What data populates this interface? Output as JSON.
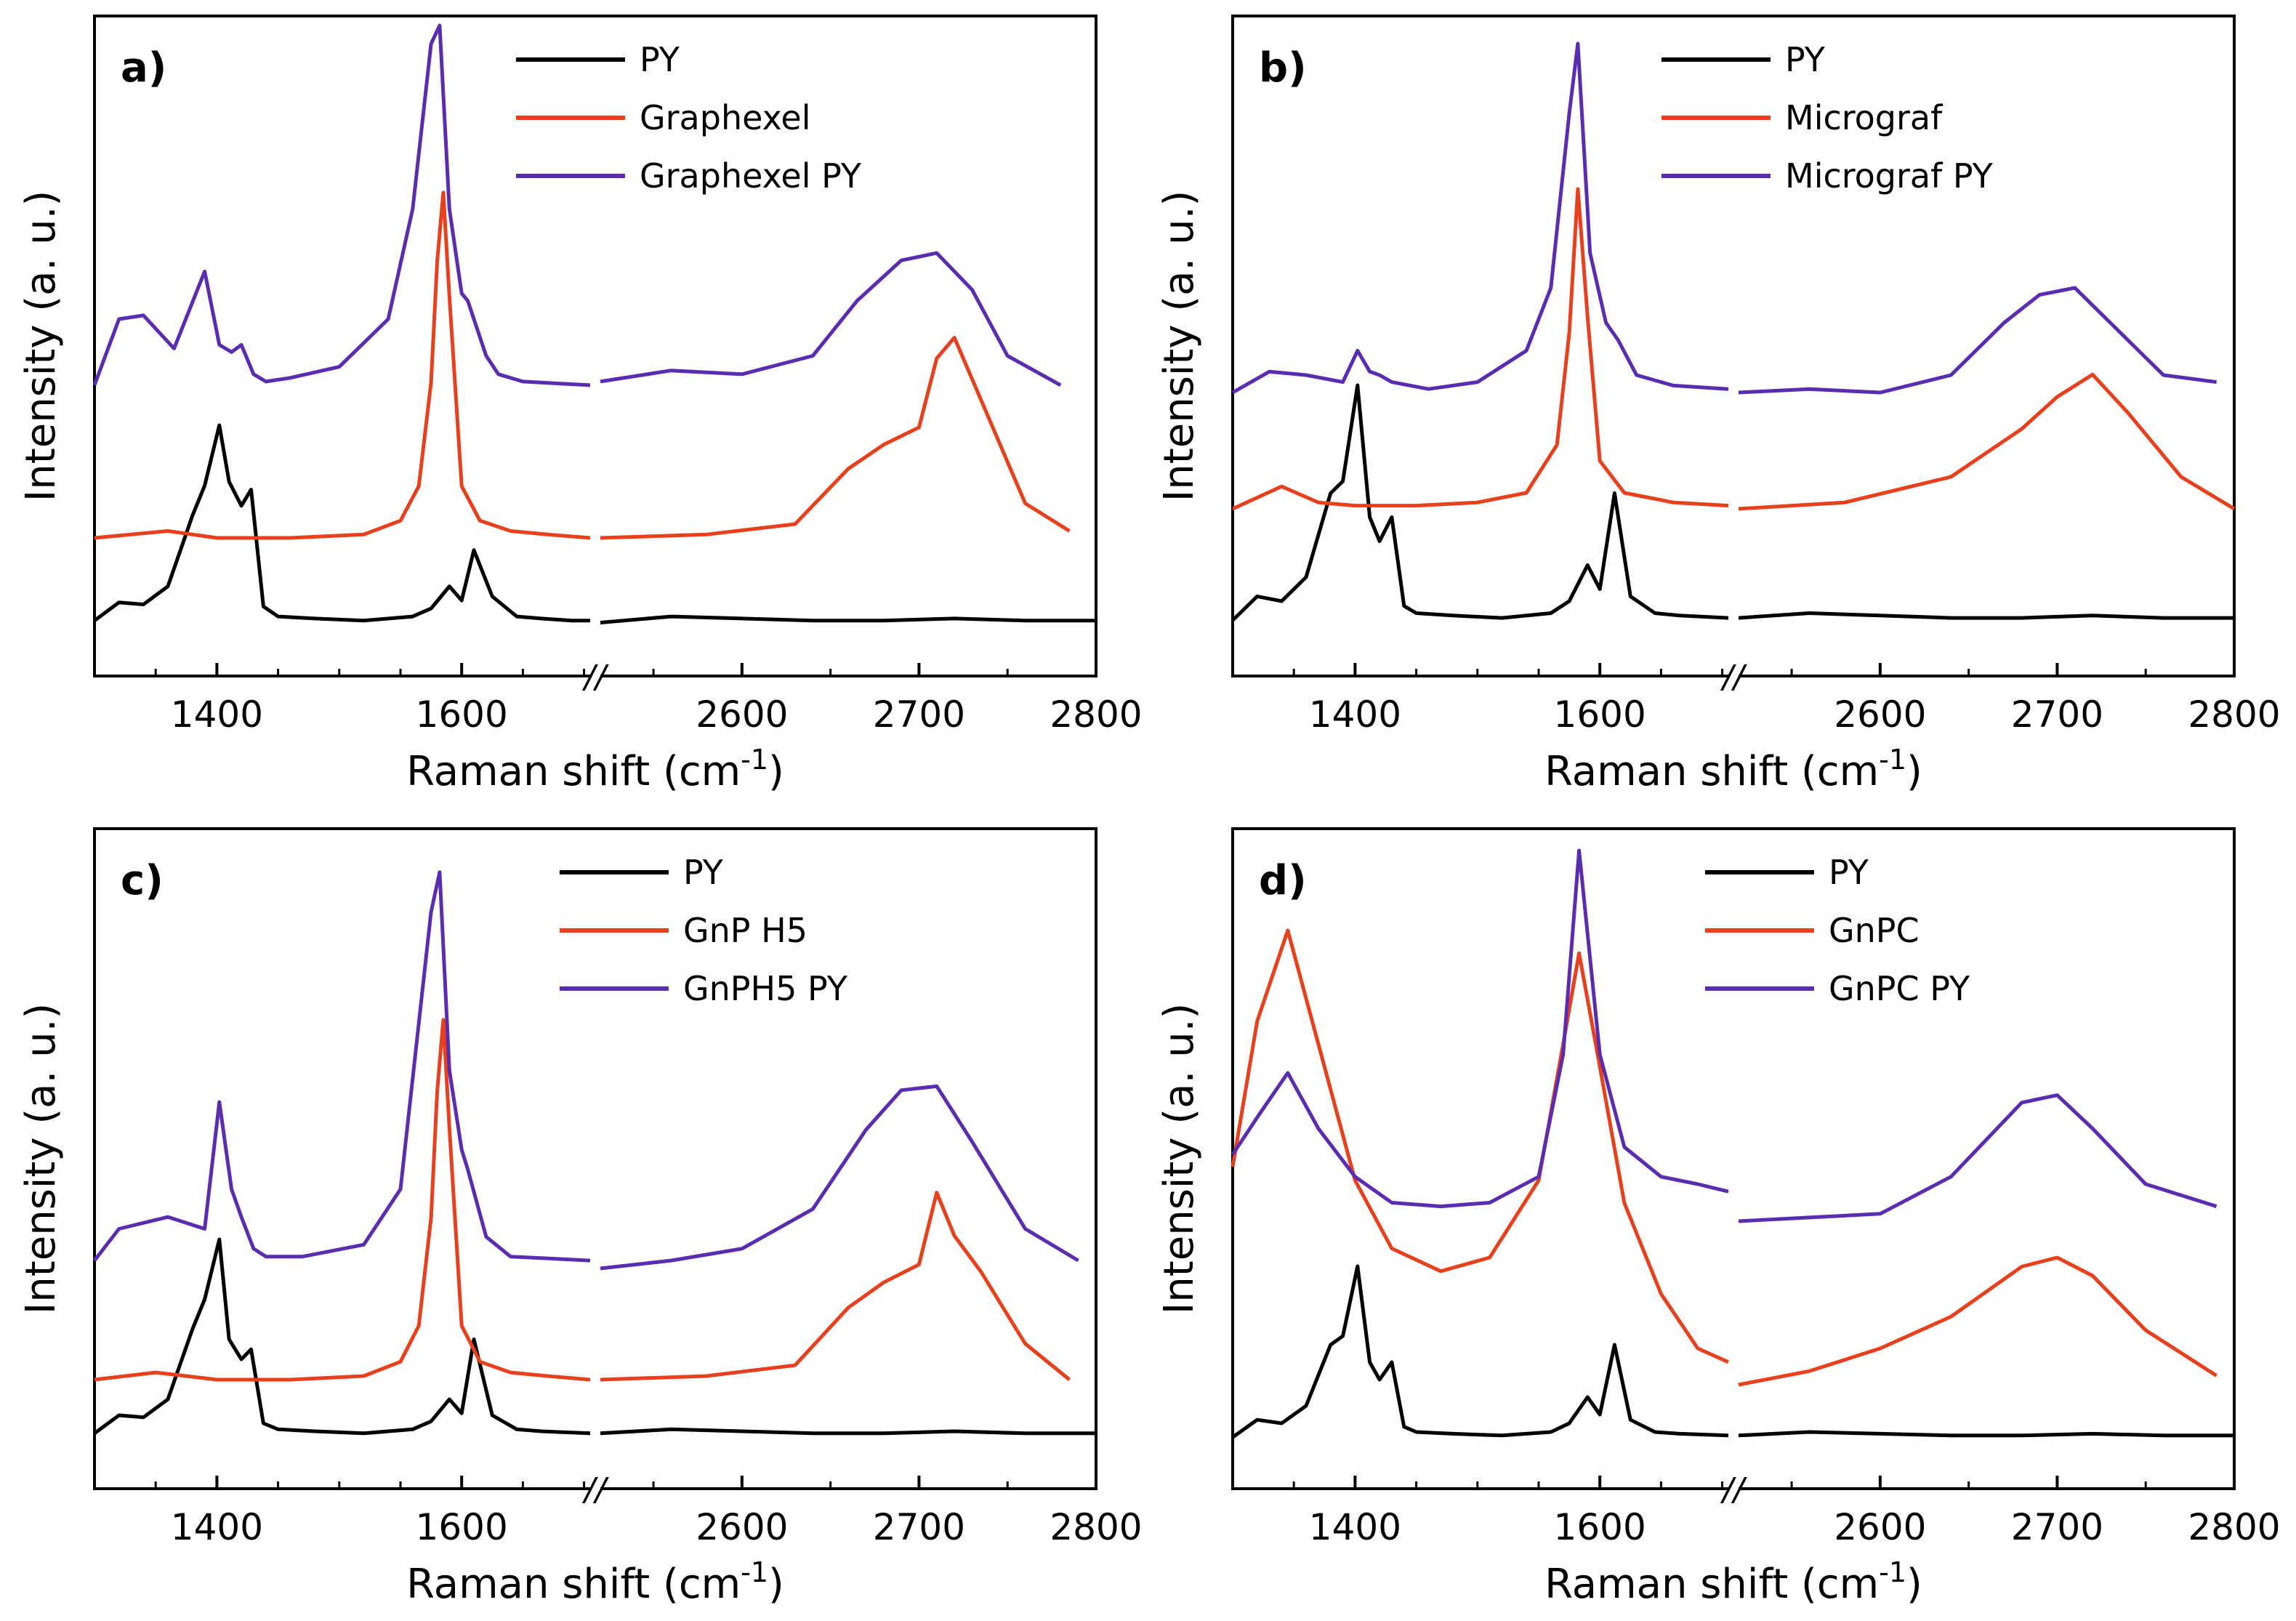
{
  "figure": {
    "x_break_symbol": "//",
    "colors": {
      "py": "#000000",
      "filler": "#e8401c",
      "combined": "#5a2db0"
    }
  },
  "chart_data": [
    {
      "type": "line",
      "panel_label": "a)",
      "xlabel": "Raman shift (cm",
      "xlabel_sup": "-1",
      "ylabel": "Intensity (a. u.)",
      "x_tick_labels": [
        "1400",
        "1600",
        "2600",
        "2700",
        "2800"
      ],
      "x_segments": [
        {
          "range": [
            1300,
            1705
          ]
        },
        {
          "range": [
            2520,
            2800
          ]
        }
      ],
      "legend_position": "top-center",
      "series": [
        {
          "name": "PY",
          "color": "#000000",
          "x": [
            1300,
            1320,
            1340,
            1360,
            1380,
            1390,
            1402,
            1410,
            1420,
            1428,
            1438,
            1450,
            1480,
            1520,
            1560,
            1575,
            1590,
            1600,
            1610,
            1625,
            1645,
            1665,
            1690,
            1705,
            2520,
            2560,
            2600,
            2640,
            2680,
            2720,
            2760,
            2800
          ],
          "values": [
            0.03,
            0.12,
            0.11,
            0.2,
            0.55,
            0.7,
            1.0,
            0.72,
            0.6,
            0.68,
            0.1,
            0.05,
            0.04,
            0.03,
            0.05,
            0.09,
            0.2,
            0.13,
            0.38,
            0.15,
            0.05,
            0.04,
            0.03,
            0.03,
            0.02,
            0.05,
            0.04,
            0.03,
            0.03,
            0.04,
            0.03,
            0.03
          ]
        },
        {
          "name": "Graphexel",
          "color": "#e8401c",
          "x": [
            1300,
            1360,
            1400,
            1460,
            1520,
            1550,
            1565,
            1575,
            1580,
            1585,
            1590,
            1600,
            1615,
            1640,
            1670,
            1705,
            2520,
            2580,
            2630,
            2660,
            2680,
            2700,
            2710,
            2720,
            2735,
            2760,
            2785
          ],
          "values": [
            0.0,
            0.02,
            0.0,
            0.0,
            0.01,
            0.05,
            0.15,
            0.45,
            0.8,
            1.0,
            0.7,
            0.15,
            0.05,
            0.02,
            0.01,
            0.0,
            0.0,
            0.01,
            0.04,
            0.2,
            0.27,
            0.32,
            0.52,
            0.58,
            0.4,
            0.1,
            0.02
          ]
        },
        {
          "name": "Graphexel PY",
          "color": "#5a2db0",
          "x": [
            1300,
            1320,
            1340,
            1365,
            1390,
            1402,
            1412,
            1420,
            1430,
            1440,
            1460,
            1500,
            1540,
            1560,
            1575,
            1582,
            1590,
            1600,
            1605,
            1620,
            1630,
            1650,
            1705,
            2520,
            2560,
            2600,
            2640,
            2665,
            2690,
            2710,
            2730,
            2750,
            2780
          ],
          "values": [
            0.02,
            0.2,
            0.21,
            0.12,
            0.33,
            0.13,
            0.11,
            0.13,
            0.05,
            0.03,
            0.04,
            0.07,
            0.2,
            0.5,
            0.95,
            1.0,
            0.5,
            0.27,
            0.25,
            0.1,
            0.05,
            0.03,
            0.02,
            0.03,
            0.06,
            0.05,
            0.1,
            0.25,
            0.36,
            0.38,
            0.28,
            0.1,
            0.02
          ]
        }
      ]
    },
    {
      "type": "line",
      "panel_label": "b)",
      "xlabel": "Raman shift (cm",
      "xlabel_sup": "-1",
      "ylabel": "Intensity (a. u.)",
      "x_tick_labels": [
        "1400",
        "1600",
        "2600",
        "2700",
        "2800"
      ],
      "x_segments": [
        {
          "range": [
            1300,
            1705
          ]
        },
        {
          "range": [
            2520,
            2800
          ]
        }
      ],
      "legend_position": "top-center",
      "series": [
        {
          "name": "PY",
          "color": "#000000",
          "x": [
            1300,
            1320,
            1340,
            1360,
            1380,
            1390,
            1402,
            1412,
            1420,
            1430,
            1440,
            1450,
            1480,
            1520,
            1560,
            1575,
            1590,
            1600,
            1612,
            1625,
            1645,
            1665,
            1705,
            2520,
            2560,
            2600,
            2640,
            2680,
            2720,
            2760,
            2800
          ],
          "values": [
            0.02,
            0.12,
            0.1,
            0.2,
            0.55,
            0.6,
            1.0,
            0.45,
            0.35,
            0.45,
            0.08,
            0.05,
            0.04,
            0.03,
            0.05,
            0.1,
            0.25,
            0.15,
            0.55,
            0.12,
            0.05,
            0.04,
            0.03,
            0.03,
            0.05,
            0.04,
            0.03,
            0.03,
            0.04,
            0.03,
            0.03
          ]
        },
        {
          "name": "Micrograf",
          "color": "#e8401c",
          "x": [
            1300,
            1340,
            1370,
            1400,
            1450,
            1500,
            1540,
            1565,
            1575,
            1582,
            1590,
            1600,
            1620,
            1660,
            1705,
            2520,
            2580,
            2640,
            2680,
            2700,
            2720,
            2740,
            2770,
            2800
          ],
          "values": [
            0.0,
            0.07,
            0.02,
            0.01,
            0.01,
            0.02,
            0.05,
            0.2,
            0.55,
            1.0,
            0.6,
            0.15,
            0.05,
            0.02,
            0.01,
            0.0,
            0.02,
            0.1,
            0.25,
            0.35,
            0.42,
            0.3,
            0.1,
            0.0
          ]
        },
        {
          "name": "Micrograf PY",
          "color": "#5a2db0",
          "x": [
            1300,
            1330,
            1360,
            1390,
            1402,
            1412,
            1420,
            1430,
            1460,
            1500,
            1540,
            1560,
            1575,
            1582,
            1592,
            1605,
            1615,
            1630,
            1660,
            1705,
            2520,
            2560,
            2600,
            2640,
            2670,
            2690,
            2710,
            2730,
            2760,
            2790
          ],
          "values": [
            0.0,
            0.06,
            0.05,
            0.03,
            0.12,
            0.06,
            0.05,
            0.03,
            0.01,
            0.03,
            0.12,
            0.3,
            0.8,
            1.0,
            0.4,
            0.2,
            0.15,
            0.05,
            0.02,
            0.01,
            0.0,
            0.01,
            0.0,
            0.05,
            0.2,
            0.28,
            0.3,
            0.2,
            0.05,
            0.03
          ]
        }
      ]
    },
    {
      "type": "line",
      "panel_label": "c)",
      "xlabel": "Raman shift (cm",
      "xlabel_sup": "-1",
      "ylabel": "Intensity (a. u.)",
      "x_tick_labels": [
        "1400",
        "1600",
        "2600",
        "2700",
        "2800"
      ],
      "x_segments": [
        {
          "range": [
            1300,
            1705
          ]
        },
        {
          "range": [
            2520,
            2800
          ]
        }
      ],
      "legend_position": "top-center",
      "series": [
        {
          "name": "PY",
          "color": "#000000",
          "x": [
            1300,
            1320,
            1340,
            1360,
            1380,
            1390,
            1402,
            1410,
            1420,
            1428,
            1438,
            1450,
            1480,
            1520,
            1560,
            1575,
            1590,
            1600,
            1610,
            1625,
            1645,
            1665,
            1705,
            2520,
            2560,
            2600,
            2640,
            2680,
            2720,
            2760,
            2800
          ],
          "values": [
            0.03,
            0.12,
            0.11,
            0.2,
            0.55,
            0.7,
            1.0,
            0.5,
            0.4,
            0.45,
            0.08,
            0.05,
            0.04,
            0.03,
            0.05,
            0.09,
            0.2,
            0.13,
            0.5,
            0.12,
            0.05,
            0.04,
            0.03,
            0.03,
            0.05,
            0.04,
            0.03,
            0.03,
            0.04,
            0.03,
            0.03
          ]
        },
        {
          "name": "GnP H5",
          "color": "#e8401c",
          "x": [
            1300,
            1350,
            1400,
            1460,
            1520,
            1550,
            1565,
            1575,
            1580,
            1585,
            1590,
            1600,
            1615,
            1640,
            1670,
            1705,
            2520,
            2580,
            2630,
            2660,
            2680,
            2700,
            2710,
            2720,
            2735,
            2760,
            2785
          ],
          "values": [
            0.0,
            0.02,
            0.0,
            0.0,
            0.01,
            0.05,
            0.15,
            0.45,
            0.8,
            1.0,
            0.7,
            0.15,
            0.05,
            0.02,
            0.01,
            0.0,
            0.0,
            0.01,
            0.04,
            0.2,
            0.27,
            0.32,
            0.52,
            0.4,
            0.3,
            0.1,
            0.0
          ]
        },
        {
          "name": "GnPH5 PY",
          "color": "#5a2db0",
          "x": [
            1300,
            1320,
            1360,
            1390,
            1402,
            1412,
            1420,
            1430,
            1440,
            1470,
            1520,
            1550,
            1575,
            1582,
            1590,
            1600,
            1605,
            1620,
            1640,
            1705,
            2520,
            2560,
            2600,
            2640,
            2670,
            2690,
            2710,
            2730,
            2760,
            2790
          ],
          "values": [
            0.02,
            0.1,
            0.13,
            0.1,
            0.42,
            0.2,
            0.13,
            0.05,
            0.03,
            0.03,
            0.06,
            0.2,
            0.9,
            1.0,
            0.5,
            0.3,
            0.25,
            0.08,
            0.03,
            0.02,
            0.0,
            0.02,
            0.05,
            0.15,
            0.35,
            0.45,
            0.46,
            0.32,
            0.1,
            0.02
          ]
        }
      ]
    },
    {
      "type": "line",
      "panel_label": "d)",
      "xlabel": "Raman shift (cm",
      "xlabel_sup": "-1",
      "ylabel": "Intensity (a. u.)",
      "x_tick_labels": [
        "1400",
        "1600",
        "2600",
        "2700",
        "2800"
      ],
      "x_segments": [
        {
          "range": [
            1300,
            1705
          ]
        },
        {
          "range": [
            2520,
            2800
          ]
        }
      ],
      "legend_position": "top-center",
      "series": [
        {
          "name": "PY",
          "color": "#000000",
          "x": [
            1300,
            1320,
            1340,
            1360,
            1380,
            1390,
            1402,
            1412,
            1420,
            1430,
            1440,
            1450,
            1480,
            1520,
            1560,
            1575,
            1590,
            1600,
            1612,
            1625,
            1645,
            1665,
            1705,
            2520,
            2560,
            2600,
            2640,
            2680,
            2720,
            2760,
            2800
          ],
          "values": [
            0.02,
            0.12,
            0.1,
            0.2,
            0.55,
            0.6,
            1.0,
            0.45,
            0.35,
            0.45,
            0.08,
            0.05,
            0.04,
            0.03,
            0.05,
            0.1,
            0.25,
            0.15,
            0.55,
            0.12,
            0.05,
            0.04,
            0.03,
            0.03,
            0.05,
            0.04,
            0.03,
            0.03,
            0.04,
            0.03,
            0.03
          ]
        },
        {
          "name": "GnPC",
          "color": "#e8401c",
          "x": [
            1300,
            1320,
            1345,
            1370,
            1400,
            1430,
            1470,
            1510,
            1550,
            1570,
            1583,
            1600,
            1620,
            1650,
            1680,
            1705,
            2520,
            2560,
            2600,
            2640,
            2680,
            2700,
            2720,
            2750,
            2790
          ],
          "values": [
            0.48,
            0.8,
            1.0,
            0.75,
            0.45,
            0.3,
            0.25,
            0.28,
            0.45,
            0.75,
            0.95,
            0.7,
            0.4,
            0.2,
            0.08,
            0.05,
            0.0,
            0.03,
            0.08,
            0.15,
            0.26,
            0.28,
            0.24,
            0.12,
            0.02
          ]
        },
        {
          "name": "GnPC PY",
          "color": "#5a2db0",
          "x": [
            1300,
            1320,
            1345,
            1370,
            1400,
            1430,
            1470,
            1510,
            1550,
            1570,
            1583,
            1600,
            1620,
            1650,
            1680,
            1705,
            2520,
            2560,
            2600,
            2640,
            2680,
            2700,
            2720,
            2750,
            2790
          ],
          "values": [
            0.18,
            0.28,
            0.4,
            0.25,
            0.12,
            0.05,
            0.04,
            0.05,
            0.12,
            0.45,
            1.0,
            0.45,
            0.2,
            0.12,
            0.1,
            0.08,
            0.0,
            0.01,
            0.02,
            0.12,
            0.32,
            0.34,
            0.25,
            0.1,
            0.04
          ]
        }
      ]
    }
  ]
}
